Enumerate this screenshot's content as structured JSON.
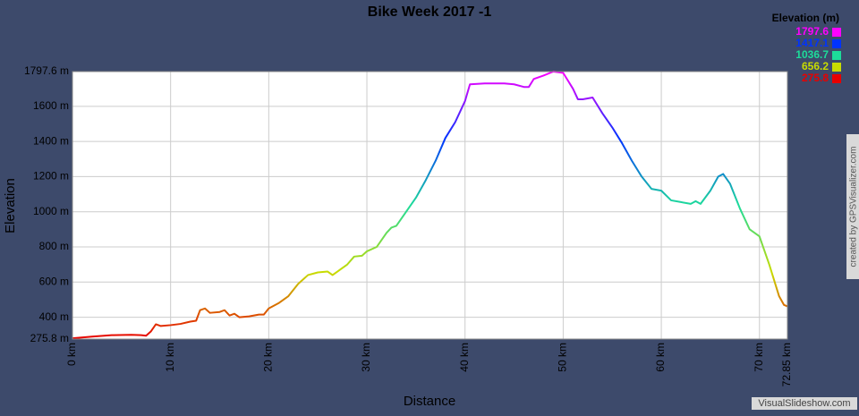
{
  "chart_data": {
    "type": "line",
    "title": "Bike Week 2017 -1",
    "xlabel": "Distance",
    "ylabel": "Elevation",
    "legend_title": "Elevation (m)",
    "color_scale": [
      {
        "value": 1797.6,
        "color": "#ff00ff"
      },
      {
        "value": 1417.1,
        "color": "#0033ff"
      },
      {
        "value": 1036.7,
        "color": "#1ddc9a"
      },
      {
        "value": 656.2,
        "color": "#c8dc00"
      },
      {
        "value": 275.8,
        "color": "#e80000"
      }
    ],
    "xlim": [
      0,
      72.85
    ],
    "ylim": [
      275.8,
      1797.6
    ],
    "xticks": [
      {
        "value": 0,
        "label": "0 km"
      },
      {
        "value": 10,
        "label": "10 km"
      },
      {
        "value": 20,
        "label": "20 km"
      },
      {
        "value": 30,
        "label": "30 km"
      },
      {
        "value": 40,
        "label": "40 km"
      },
      {
        "value": 50,
        "label": "50 km"
      },
      {
        "value": 60,
        "label": "60 km"
      },
      {
        "value": 70,
        "label": "70 km"
      },
      {
        "value": 72.85,
        "label": "72.85 km"
      }
    ],
    "yticks": [
      {
        "value": 275.8,
        "label": "275.8 m"
      },
      {
        "value": 400,
        "label": "400 m"
      },
      {
        "value": 600,
        "label": "600 m"
      },
      {
        "value": 800,
        "label": "800 m"
      },
      {
        "value": 1000,
        "label": "1000 m"
      },
      {
        "value": 1200,
        "label": "1200 m"
      },
      {
        "value": 1400,
        "label": "1400 m"
      },
      {
        "value": 1600,
        "label": "1600 m"
      },
      {
        "value": 1797.6,
        "label": "1797.6 m"
      }
    ],
    "grid": true,
    "x": [
      0,
      2,
      4,
      6,
      7,
      7.5,
      8,
      8.5,
      9,
      10,
      11,
      12,
      12.6,
      13,
      13.5,
      14,
      15,
      15.5,
      16,
      16.5,
      17,
      18,
      19,
      19.5,
      20,
      21,
      22,
      23,
      24,
      25,
      26,
      26.5,
      27,
      28,
      28.7,
      29.5,
      30,
      31,
      32,
      32.5,
      33,
      34,
      35,
      36,
      37,
      38,
      39,
      40,
      40.5,
      42,
      44,
      45,
      46,
      46.5,
      47,
      48,
      49,
      50,
      51,
      51.5,
      52,
      53,
      54,
      55,
      56,
      57,
      58,
      59,
      60,
      61,
      62,
      63,
      63.5,
      64,
      65,
      65.8,
      66.3,
      67,
      68,
      69,
      70,
      71,
      72,
      72.5,
      72.85
    ],
    "values": [
      280,
      290,
      298,
      300,
      298,
      295,
      320,
      360,
      350,
      355,
      362,
      375,
      380,
      440,
      450,
      425,
      430,
      440,
      410,
      420,
      400,
      405,
      415,
      415,
      450,
      480,
      520,
      590,
      640,
      655,
      660,
      640,
      660,
      700,
      745,
      750,
      775,
      800,
      880,
      910,
      920,
      1000,
      1080,
      1180,
      1290,
      1420,
      1510,
      1630,
      1725,
      1730,
      1730,
      1725,
      1710,
      1710,
      1755,
      1775,
      1797.6,
      1790,
      1700,
      1640,
      1640,
      1650,
      1560,
      1480,
      1390,
      1290,
      1200,
      1130,
      1120,
      1065,
      1055,
      1045,
      1060,
      1045,
      1120,
      1200,
      1215,
      1160,
      1020,
      900,
      860,
      700,
      520,
      470,
      462
    ],
    "watermarks": [
      "created by GPSVisualizer.com",
      "VisualSlideshow.com"
    ]
  }
}
